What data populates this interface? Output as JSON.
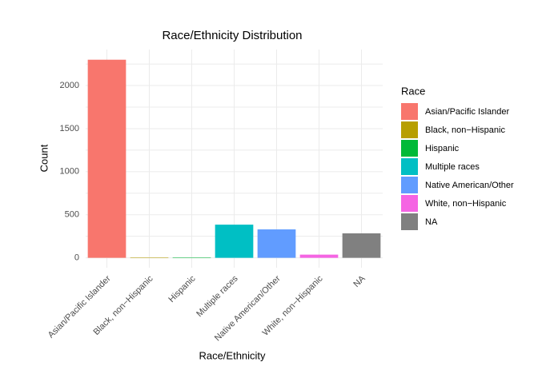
{
  "chart_data": {
    "type": "bar",
    "title": "Race/Ethnicity Distribution",
    "x_label": "Race/Ethnicity",
    "y_label": "Count",
    "legend_title": "Race",
    "categories": [
      "Asian/Pacific Islander",
      "Black, non−Hispanic",
      "Hispanic",
      "Multiple races",
      "Native American/Other",
      "White, non−Hispanic",
      "NA"
    ],
    "values": [
      2300,
      5,
      5,
      385,
      330,
      37,
      284
    ],
    "colors": [
      "#f8766d",
      "#b79f00",
      "#00ba38",
      "#00bfc4",
      "#619cff",
      "#f564e3",
      "#808080"
    ],
    "ylim": [
      -115,
      2418
    ],
    "yticks": [
      0,
      500,
      1000,
      1500,
      2000
    ],
    "grid": true
  }
}
